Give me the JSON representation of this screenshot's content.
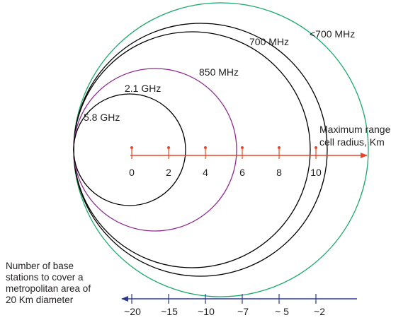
{
  "colors": {
    "circle_outer": "#1aa86a",
    "circle_850": "#8e2b8e",
    "circle_black": "#000000",
    "range_axis": "#e8452c",
    "station_axis": "#2e3a8f",
    "text": "#231f20"
  },
  "bands": [
    {
      "label": "5.8 GHz",
      "color_key": "circle_black"
    },
    {
      "label": "2.1 GHz",
      "color_key": "circle_850"
    },
    {
      "label": "850 MHz",
      "color_key": "circle_black"
    },
    {
      "label": "700 MHz",
      "color_key": "circle_black"
    },
    {
      "label": "<700 MHz",
      "color_key": "circle_outer"
    }
  ],
  "range_axis": {
    "label_lines": [
      "Maximum range",
      "cell radius, Km"
    ],
    "ticks": [
      "0",
      "2",
      "4",
      "6",
      "8",
      "10"
    ]
  },
  "station_axis": {
    "label_lines": [
      "Number of base",
      "stations to cover a",
      "metropolitan area of",
      "20 Km diameter"
    ],
    "ticks": [
      "~20",
      "~15",
      "~10",
      "~7",
      "~ 5",
      "~2"
    ]
  }
}
